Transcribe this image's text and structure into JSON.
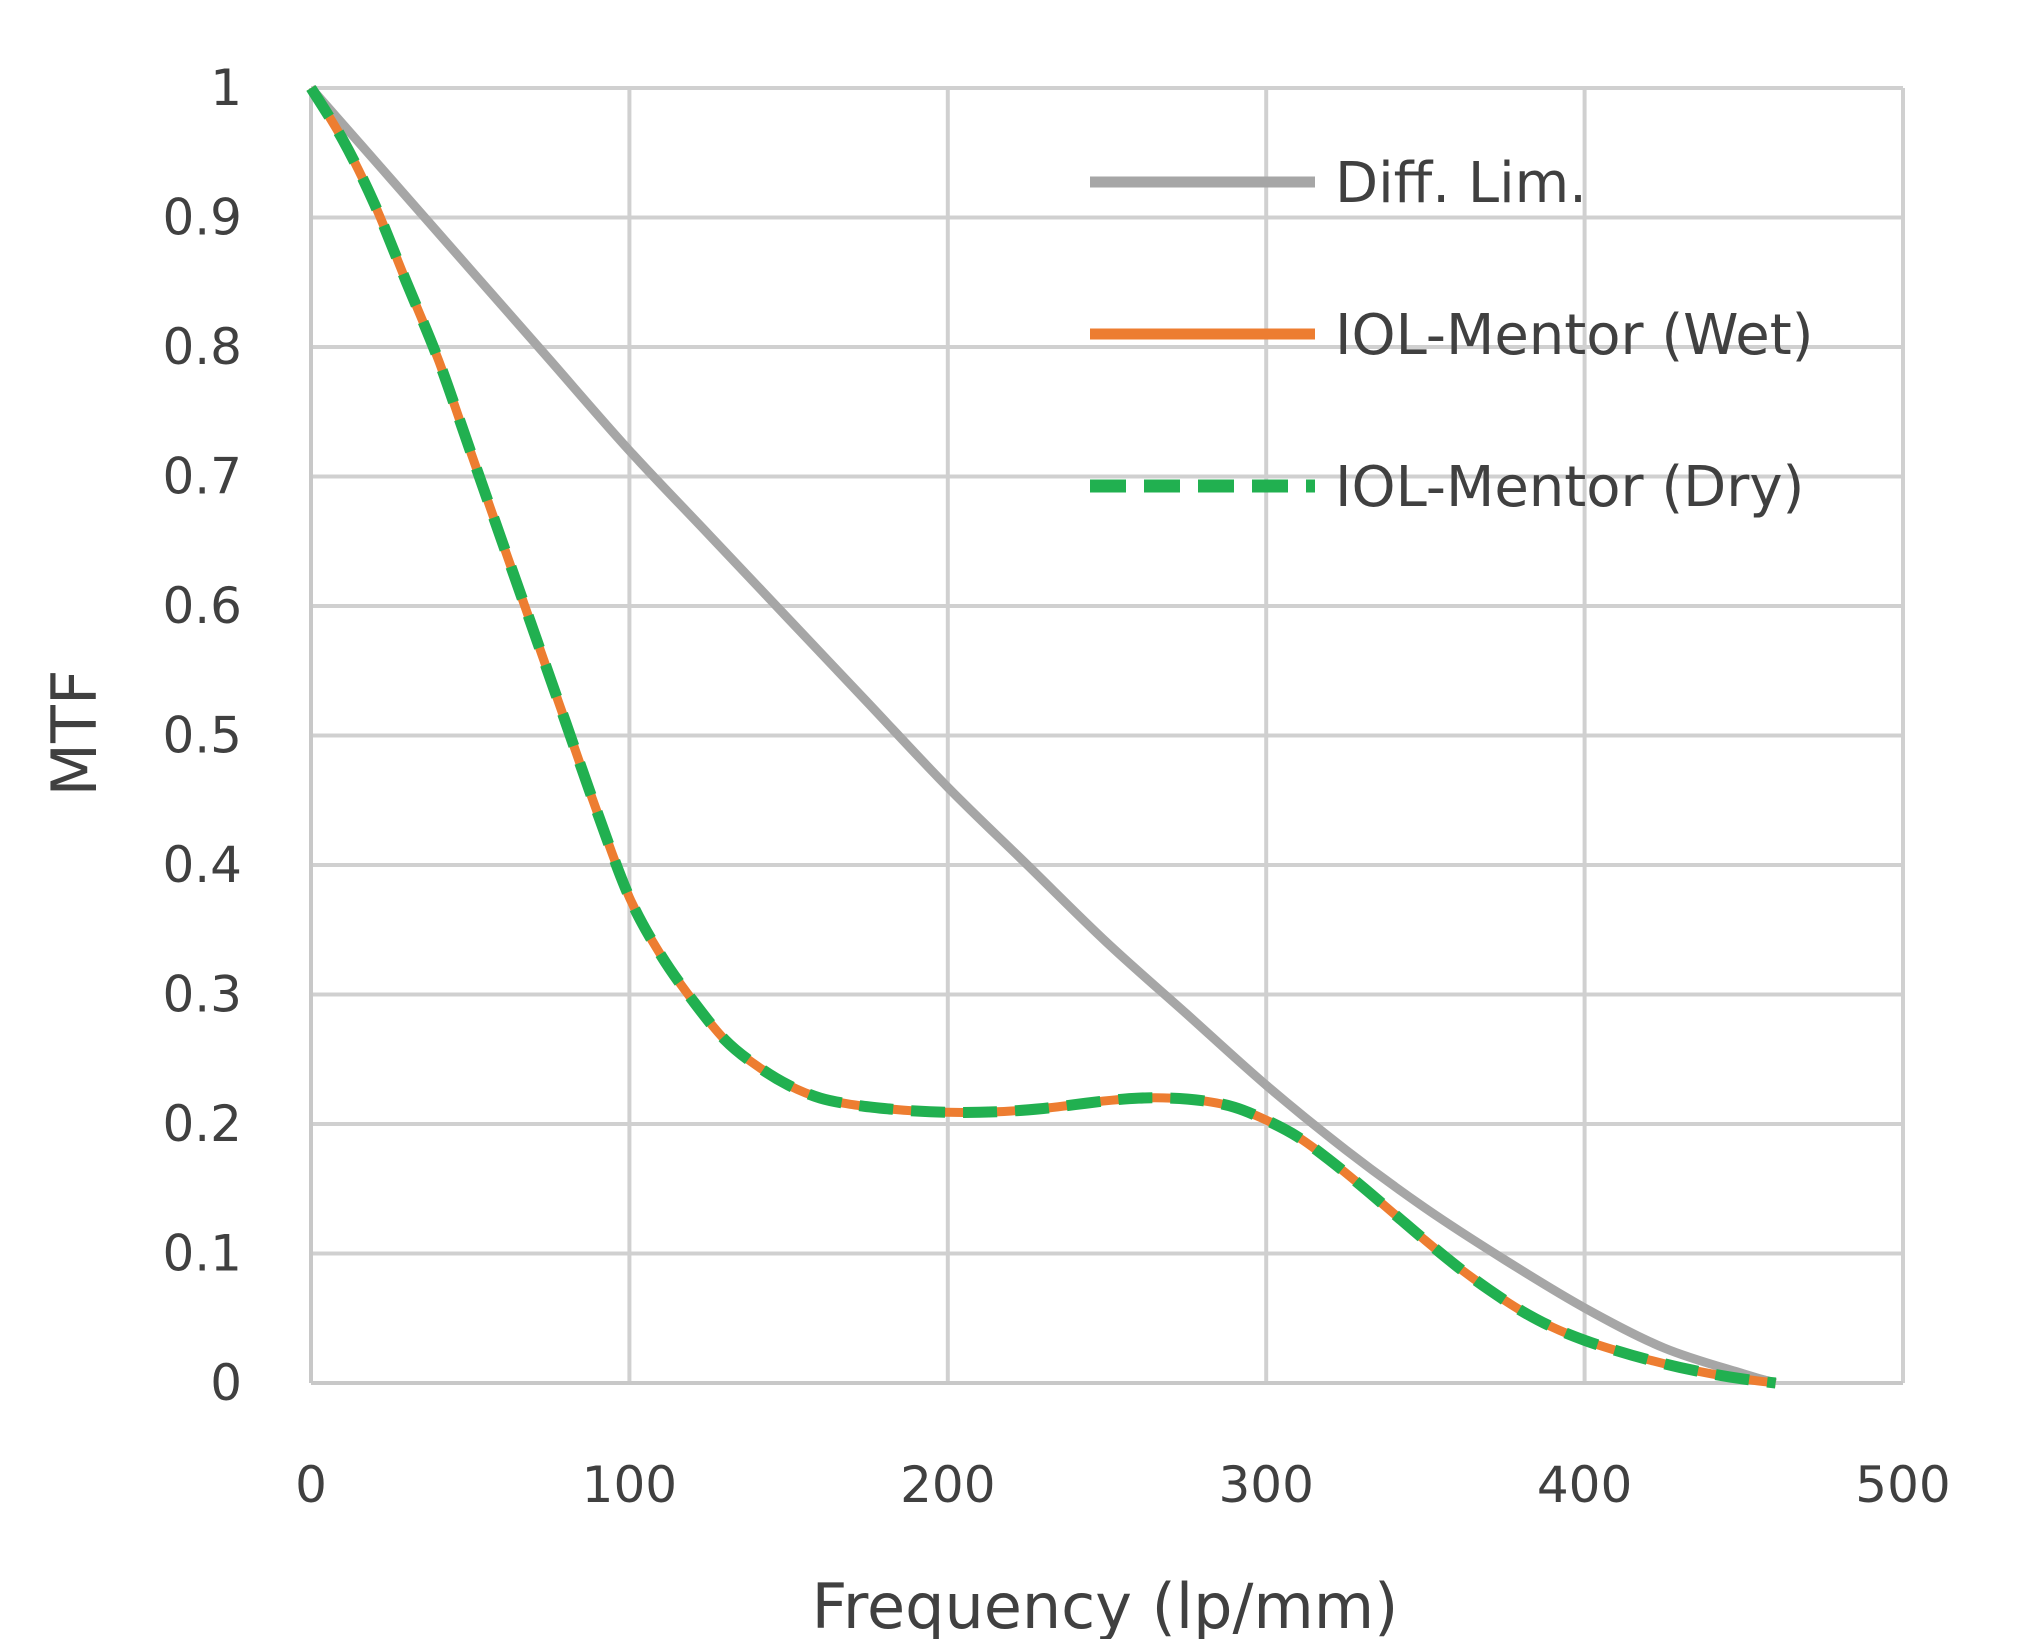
{
  "chart_data": {
    "type": "line",
    "xlabel": "Frequency (lp/mm)",
    "ylabel": "MTF",
    "xlim": [
      0,
      500
    ],
    "ylim": [
      0,
      1
    ],
    "xticks": [
      0,
      100,
      200,
      300,
      400,
      500
    ],
    "yticks": [
      0,
      0.1,
      0.2,
      0.3,
      0.4,
      0.5,
      0.6,
      0.7,
      0.8,
      0.9,
      1
    ],
    "xtick_labels": [
      "0",
      "100",
      "200",
      "300",
      "400",
      "500"
    ],
    "ytick_labels": [
      "0",
      "0.1",
      "0.2",
      "0.3",
      "0.4",
      "0.5",
      "0.6",
      "0.7",
      "0.8",
      "0.9",
      "1"
    ],
    "grid": true,
    "legend_position": "top-right",
    "series": [
      {
        "name": "Diff. Lim.",
        "color": "#a6a6a6",
        "style": "solid",
        "x": [
          0,
          25,
          50,
          75,
          100,
          125,
          150,
          175,
          200,
          225,
          250,
          275,
          300,
          325,
          350,
          375,
          400,
          425,
          450,
          460
        ],
        "y": [
          1.0,
          0.93,
          0.86,
          0.79,
          0.72,
          0.655,
          0.59,
          0.525,
          0.46,
          0.4,
          0.34,
          0.285,
          0.23,
          0.18,
          0.135,
          0.095,
          0.058,
          0.027,
          0.007,
          0.0
        ]
      },
      {
        "name": "IOL-Mentor (Wet)",
        "color": "#ed7d31",
        "style": "solid",
        "x": [
          0,
          10,
          20,
          30,
          40,
          50,
          60,
          70,
          80,
          90,
          100,
          110,
          120,
          130,
          140,
          150,
          160,
          170,
          180,
          190,
          200,
          210,
          220,
          230,
          240,
          250,
          260,
          270,
          280,
          290,
          300,
          310,
          320,
          330,
          340,
          350,
          360,
          370,
          380,
          390,
          400,
          410,
          420,
          430,
          440,
          450,
          460
        ],
        "y": [
          1.0,
          0.96,
          0.91,
          0.85,
          0.79,
          0.72,
          0.65,
          0.58,
          0.51,
          0.44,
          0.375,
          0.33,
          0.295,
          0.265,
          0.245,
          0.23,
          0.22,
          0.215,
          0.212,
          0.21,
          0.209,
          0.209,
          0.21,
          0.212,
          0.215,
          0.218,
          0.22,
          0.22,
          0.218,
          0.213,
          0.203,
          0.19,
          0.172,
          0.152,
          0.131,
          0.11,
          0.09,
          0.072,
          0.056,
          0.043,
          0.033,
          0.025,
          0.018,
          0.012,
          0.007,
          0.003,
          0.0
        ]
      },
      {
        "name": "IOL-Mentor (Dry)",
        "color": "#21b050",
        "style": "dashed",
        "x": [
          0,
          10,
          20,
          30,
          40,
          50,
          60,
          70,
          80,
          90,
          100,
          110,
          120,
          130,
          140,
          150,
          160,
          170,
          180,
          190,
          200,
          210,
          220,
          230,
          240,
          250,
          260,
          270,
          280,
          290,
          300,
          310,
          320,
          330,
          340,
          350,
          360,
          370,
          380,
          390,
          400,
          410,
          420,
          430,
          440,
          450,
          460
        ],
        "y": [
          1.0,
          0.96,
          0.91,
          0.85,
          0.79,
          0.72,
          0.65,
          0.58,
          0.51,
          0.44,
          0.375,
          0.33,
          0.295,
          0.265,
          0.245,
          0.23,
          0.22,
          0.215,
          0.212,
          0.21,
          0.209,
          0.209,
          0.21,
          0.212,
          0.215,
          0.218,
          0.22,
          0.22,
          0.218,
          0.213,
          0.203,
          0.19,
          0.172,
          0.152,
          0.131,
          0.11,
          0.09,
          0.072,
          0.056,
          0.043,
          0.033,
          0.025,
          0.018,
          0.012,
          0.007,
          0.003,
          0.0
        ]
      }
    ]
  }
}
